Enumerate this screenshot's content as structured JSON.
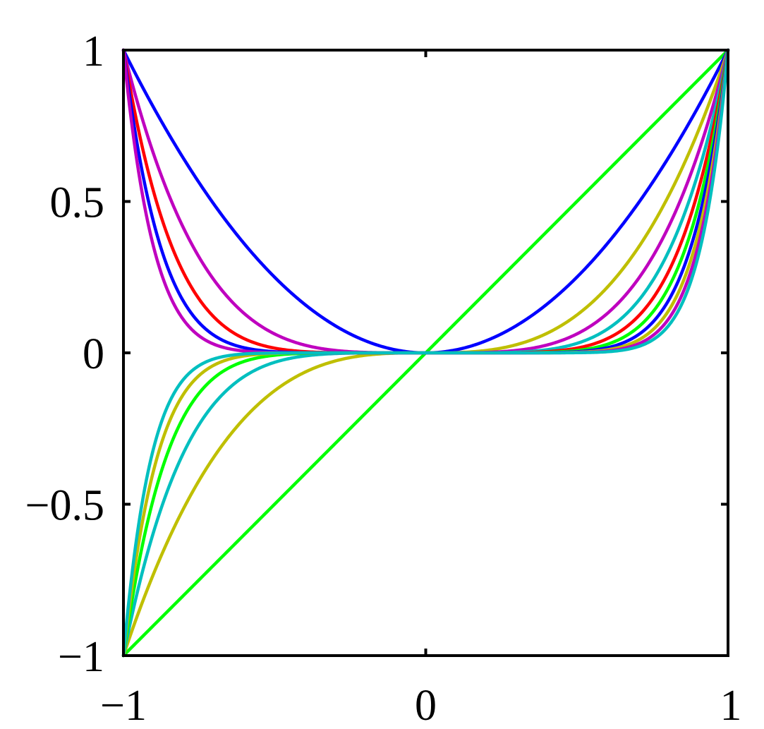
{
  "chart_data": {
    "type": "line",
    "title": "",
    "xlabel": "",
    "ylabel": "",
    "xlim": [
      -1,
      1
    ],
    "ylim": [
      -1,
      1
    ],
    "grid": false,
    "legend": "none",
    "x_ticks": [
      {
        "value": -1,
        "label": "−1"
      },
      {
        "value": 0,
        "label": "0"
      },
      {
        "value": 1,
        "label": "1"
      }
    ],
    "y_ticks": [
      {
        "value": -1,
        "label": "−1"
      },
      {
        "value": -0.5,
        "label": "−0.5"
      },
      {
        "value": 0,
        "label": "0"
      },
      {
        "value": 0.5,
        "label": "0.5"
      },
      {
        "value": 1,
        "label": "1"
      }
    ],
    "function": "y = x^n",
    "x_range": [
      -1,
      1
    ],
    "series": [
      {
        "exponent": 1,
        "color": "#00ff00"
      },
      {
        "exponent": 2,
        "color": "#0000ff"
      },
      {
        "exponent": 3,
        "color": "#bfbf00"
      },
      {
        "exponent": 4,
        "color": "#bf00bf"
      },
      {
        "exponent": 5,
        "color": "#00bfbf"
      },
      {
        "exponent": 6,
        "color": "#ff0000"
      },
      {
        "exponent": 7,
        "color": "#00ff00"
      },
      {
        "exponent": 8,
        "color": "#0000ff"
      },
      {
        "exponent": 9,
        "color": "#bfbf00"
      },
      {
        "exponent": 10,
        "color": "#bf00bf"
      },
      {
        "exponent": 11,
        "color": "#00bfbf"
      }
    ]
  }
}
